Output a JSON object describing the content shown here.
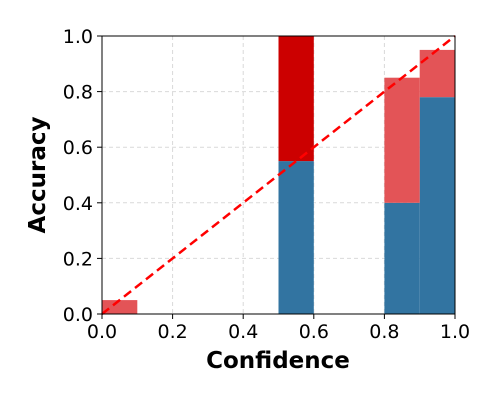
{
  "chart_data": {
    "type": "bar",
    "title": "",
    "xlabel": "Confidence",
    "ylabel": "Accuracy",
    "xlim": [
      0.0,
      1.0
    ],
    "ylim": [
      0.0,
      1.0
    ],
    "x_ticks": [
      "0.0",
      "0.2",
      "0.4",
      "0.6",
      "0.8",
      "1.0"
    ],
    "y_ticks": [
      "0.0",
      "0.2",
      "0.4",
      "0.6",
      "0.8",
      "1.0"
    ],
    "bin_width": 0.1,
    "grid": true,
    "colors": {
      "accuracy": "#3274a1",
      "gap_over": "#e35457",
      "gap_under": "#cc0000",
      "diagonal": "#ff0000"
    },
    "series": [
      {
        "key": "accuracy",
        "bins": [
          {
            "x0": 0.5,
            "x1": 0.6,
            "value": 0.55
          },
          {
            "x0": 0.8,
            "x1": 0.9,
            "value": 0.4
          },
          {
            "x0": 0.9,
            "x1": 1.0,
            "value": 0.78
          }
        ]
      },
      {
        "key": "gap",
        "bins": [
          {
            "x0": 0.0,
            "x1": 0.1,
            "from": 0.0,
            "to": 0.05,
            "color": "gap_over"
          },
          {
            "x0": 0.5,
            "x1": 0.6,
            "from": 0.55,
            "to": 1.0,
            "color": "gap_under"
          },
          {
            "x0": 0.8,
            "x1": 0.9,
            "from": 0.4,
            "to": 0.85,
            "color": "gap_over"
          },
          {
            "x0": 0.9,
            "x1": 1.0,
            "from": 0.78,
            "to": 0.95,
            "color": "gap_over"
          }
        ]
      }
    ],
    "diagonal": {
      "from": [
        0.0,
        0.0
      ],
      "to": [
        1.0,
        1.0
      ],
      "style": "dashed"
    }
  }
}
